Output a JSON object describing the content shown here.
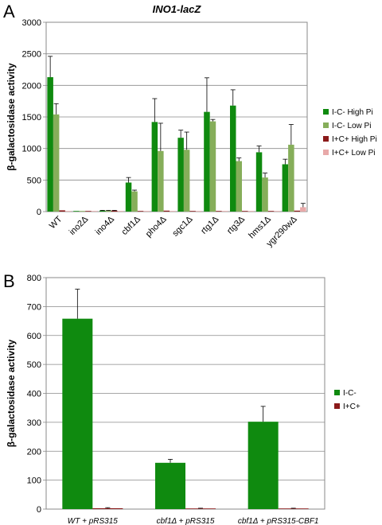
{
  "chart_data": [
    {
      "panel_label": "A",
      "type": "bar",
      "title": "INO1-lacZ",
      "ylabel": "β-galactosidase activity",
      "xlabel": "",
      "ylim": [
        0,
        3000
      ],
      "yticks": [
        0,
        500,
        1000,
        1500,
        2000,
        2500,
        3000
      ],
      "grid": true,
      "legend_position": "right",
      "categories": [
        "WT",
        "ino2Δ",
        "ino4Δ",
        "cbf1Δ",
        "pho4Δ",
        "sgc1Δ",
        "rtg1Δ",
        "rtg3Δ",
        "hms1Δ",
        "ygr290wΔ"
      ],
      "series": [
        {
          "name": "I-C- High Pi",
          "color": "#0f8a0f",
          "values": [
            2130,
            5,
            15,
            460,
            1420,
            1170,
            1580,
            1680,
            940,
            750
          ],
          "errors": [
            330,
            0,
            5,
            80,
            370,
            120,
            540,
            250,
            100,
            80
          ]
        },
        {
          "name": "I-C- Low Pi",
          "color": "#86ae5a",
          "values": [
            1540,
            3,
            15,
            320,
            960,
            980,
            1430,
            800,
            540,
            1060
          ],
          "errors": [
            170,
            0,
            5,
            20,
            440,
            280,
            30,
            50,
            70,
            320
          ]
        },
        {
          "name": "I+C+ High Pi",
          "color": "#8b1a1a",
          "values": [
            20,
            5,
            15,
            5,
            15,
            5,
            5,
            5,
            5,
            15
          ],
          "errors": [
            0,
            0,
            5,
            0,
            0,
            0,
            0,
            0,
            0,
            0
          ]
        },
        {
          "name": "I+C+ Low Pi",
          "color": "#e8a9a9",
          "values": [
            10,
            5,
            10,
            5,
            10,
            5,
            5,
            5,
            5,
            70
          ],
          "errors": [
            0,
            0,
            0,
            0,
            0,
            0,
            0,
            0,
            0,
            60
          ]
        }
      ]
    },
    {
      "panel_label": "B",
      "type": "bar",
      "title": "",
      "ylabel": "β-galactosidase activity",
      "xlabel": "",
      "ylim": [
        0,
        800
      ],
      "yticks": [
        0,
        100,
        200,
        300,
        400,
        500,
        600,
        700,
        800
      ],
      "grid": true,
      "legend_position": "right",
      "categories": [
        "WT + pRS315",
        "cbf1Δ + pRS315",
        "cbf1Δ + pRS315-CBF1"
      ],
      "series": [
        {
          "name": "I-C-",
          "color": "#0f8a0f",
          "values": [
            658,
            160,
            302
          ],
          "errors": [
            102,
            12,
            53
          ]
        },
        {
          "name": "I+C+",
          "color": "#8b1a1a",
          "values": [
            3,
            2,
            2
          ],
          "errors": [
            2,
            1,
            1
          ]
        }
      ]
    }
  ]
}
